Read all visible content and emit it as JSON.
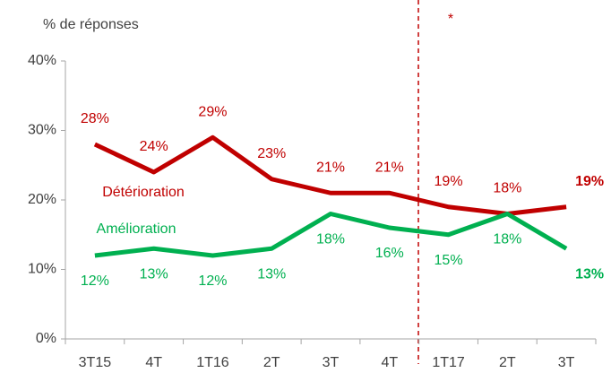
{
  "chart_data": {
    "type": "line",
    "y_axis_label": "% de réponses",
    "annotation": "*",
    "categories": [
      "3T15",
      "4T",
      "1T16",
      "2T",
      "3T",
      "4T",
      "1T17",
      "2T",
      "3T"
    ],
    "series": [
      {
        "name": "Détérioration",
        "color": "#c00000",
        "values": [
          28,
          24,
          29,
          23,
          21,
          21,
          19,
          18,
          19
        ],
        "value_labels": [
          "28%",
          "24%",
          "29%",
          "23%",
          "21%",
          "21%",
          "19%",
          "18%",
          "19%"
        ]
      },
      {
        "name": "Amélioration",
        "color": "#00b050",
        "values": [
          12,
          13,
          12,
          13,
          18,
          16,
          15,
          18,
          13
        ],
        "value_labels": [
          "12%",
          "13%",
          "12%",
          "13%",
          "18%",
          "16%",
          "15%",
          "18%",
          "13%"
        ]
      }
    ],
    "ylim": [
      0,
      40
    ],
    "yticks": [
      {
        "value": 0,
        "label": "0%"
      },
      {
        "value": 10,
        "label": "10%"
      },
      {
        "value": 20,
        "label": "20%"
      },
      {
        "value": 30,
        "label": "30%"
      },
      {
        "value": 40,
        "label": "40%"
      }
    ]
  }
}
